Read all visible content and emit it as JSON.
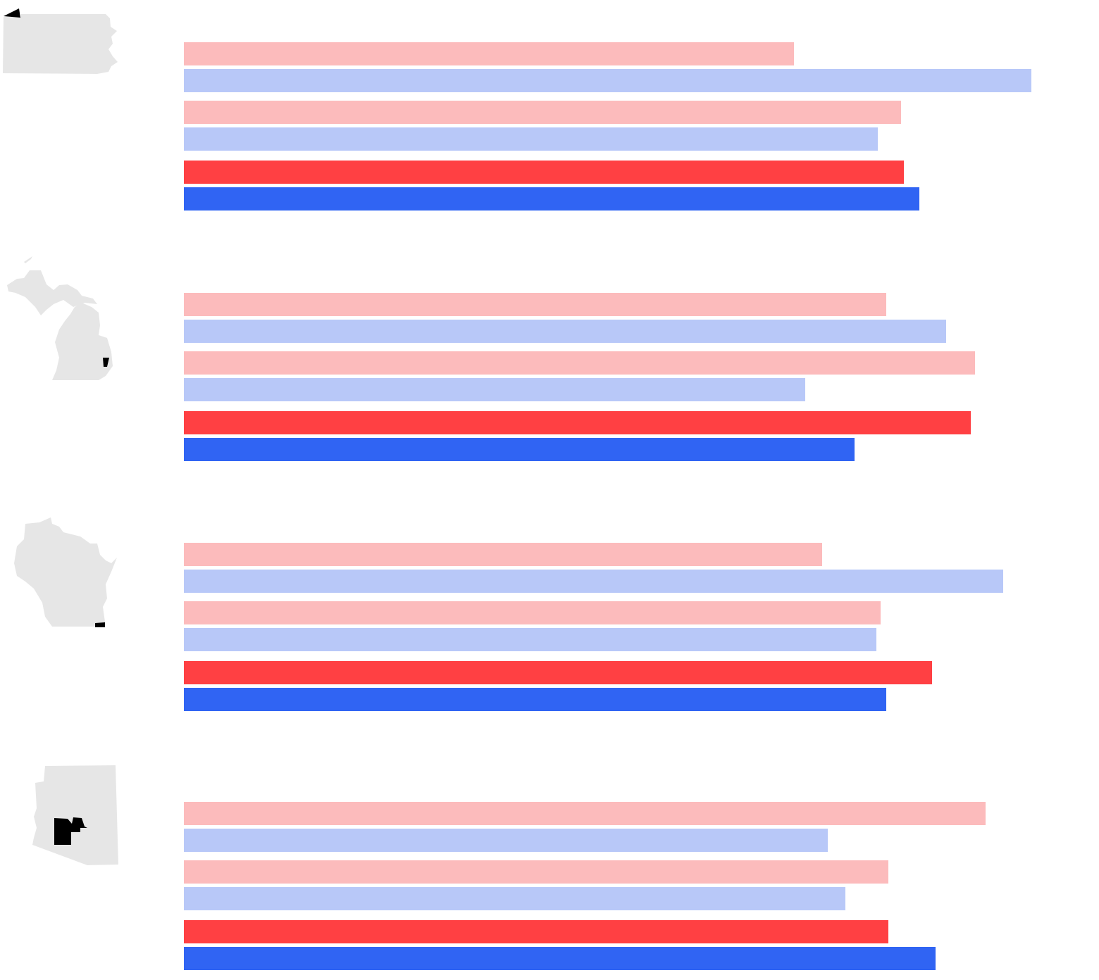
{
  "colors": {
    "rep_light": "#fcbbbc",
    "dem_light": "#b8c8f8",
    "rep": "#ff4043",
    "dem": "#3064f3",
    "map_fill": "#e6e6e6",
    "map_highlight": "#000000"
  },
  "icons": [
    "pennsylvania-map-icon",
    "michigan-map-icon",
    "wisconsin-map-icon",
    "arizona-map-icon"
  ],
  "chart_data": {
    "type": "bar",
    "orientation": "horizontal",
    "grid": false,
    "legend": "none",
    "xlim": [
      0,
      1300
    ],
    "groups": [
      {
        "map_icon": "pennsylvania-map-icon",
        "bars": [
          {
            "color": "rep_light",
            "value": 866
          },
          {
            "color": "dem_light",
            "value": 1203
          },
          {
            "color": "rep_light",
            "value": 1018
          },
          {
            "color": "dem_light",
            "value": 985
          },
          {
            "color": "rep",
            "value": 1022
          },
          {
            "color": "dem",
            "value": 1044
          }
        ]
      },
      {
        "map_icon": "michigan-map-icon",
        "bars": [
          {
            "color": "rep_light",
            "value": 997
          },
          {
            "color": "dem_light",
            "value": 1082
          },
          {
            "color": "rep_light",
            "value": 1123
          },
          {
            "color": "dem_light",
            "value": 882
          },
          {
            "color": "rep",
            "value": 1117
          },
          {
            "color": "dem",
            "value": 952
          }
        ]
      },
      {
        "map_icon": "wisconsin-map-icon",
        "bars": [
          {
            "color": "rep_light",
            "value": 906
          },
          {
            "color": "dem_light",
            "value": 1163
          },
          {
            "color": "rep_light",
            "value": 989
          },
          {
            "color": "dem_light",
            "value": 983
          },
          {
            "color": "rep",
            "value": 1062
          },
          {
            "color": "dem",
            "value": 997
          }
        ]
      },
      {
        "map_icon": "arizona-map-icon",
        "bars": [
          {
            "color": "rep_light",
            "value": 1138
          },
          {
            "color": "dem_light",
            "value": 914
          },
          {
            "color": "rep_light",
            "value": 1000
          },
          {
            "color": "dem_light",
            "value": 939
          },
          {
            "color": "rep",
            "value": 1000
          },
          {
            "color": "dem",
            "value": 1067
          }
        ]
      }
    ]
  }
}
